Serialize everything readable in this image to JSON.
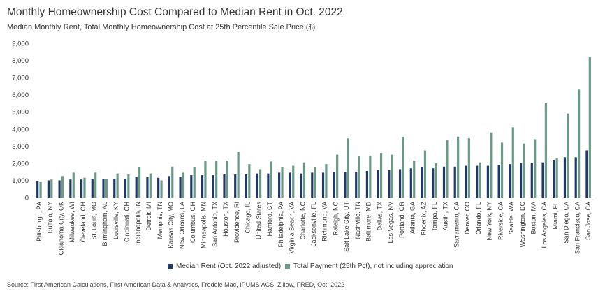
{
  "title": "Monthly Homeownership Cost Compared to Median Rent in Oct. 2022",
  "subtitle": "Median Monthly Rent, Total Monthly Homeownership Cost at 25th Percentile Sale Price ($)",
  "source": "Source: First American Calculations, First American Data & Analytics, Freddie Mac, IPUMS ACS, Zillow, FRED, Oct. 2022",
  "colors": {
    "rent": "#1f3a68",
    "payment": "#6a9a86",
    "text": "#333333"
  },
  "chart_data": {
    "type": "bar",
    "title": "Monthly Homeownership Cost Compared to Median Rent in Oct. 2022",
    "subtitle": "Median Monthly Rent, Total Monthly Homeownership Cost at 25th Percentile Sale Price ($)",
    "xlabel": "",
    "ylabel": "",
    "ylim": [
      0,
      9000
    ],
    "yticks": [
      "0",
      "1,000",
      "2,000",
      "3,000",
      "4,000",
      "5,000",
      "6,000",
      "7,000",
      "8,000",
      "9,000"
    ],
    "grid": false,
    "legend_position": "bottom",
    "categories": [
      "Pittsburgh, PA",
      "Buffalo, NY",
      "Oklahoma City, OK",
      "Milwaukee, WI",
      "Cleveland, OH",
      "St. Louis, MO",
      "Birmingham, AL",
      "Louisville, KY",
      "Cincinnati, OH",
      "Indianapolis, IN",
      "Detroit, MI",
      "Memphis, TN",
      "Kansas City, MO",
      "New Orleans, LA",
      "Columbus, OH",
      "Minneapolis, MN",
      "San Antonio, TX",
      "Houston, TX",
      "Providence, RI",
      "Chicago, IL",
      "United States",
      "Hartford, CT",
      "Philadelphia, PA",
      "Virginia Beach, VA",
      "Charlotte, NC",
      "Jacksonville, FL",
      "Richmond, VA",
      "Raleigh, NC",
      "Salt Lake City, UT",
      "Nashville, TN",
      "Baltimore, MD",
      "Dallas, TX",
      "Las Vegas, NV",
      "Portland, OR",
      "Atlanta, GA",
      "Phoenix, AZ",
      "Tampa, FL",
      "Austin, TX",
      "Sacramento, CA",
      "Denver, CO",
      "Orlando, FL",
      "New York, NY",
      "Riverside, CA",
      "Seattle, WA",
      "Washington, DC",
      "Boston, MA",
      "Los Angeles, CA",
      "Miami, FL",
      "San Diego, CA",
      "San Francisco, CA",
      "San Jose, CA"
    ],
    "series": [
      {
        "name": "Median Rent (Oct. 2022 adjusted)",
        "values": [
          960,
          1000,
          1000,
          1050,
          1050,
          1070,
          1100,
          1080,
          1100,
          1200,
          1200,
          1150,
          1250,
          1200,
          1300,
          1300,
          1300,
          1350,
          1350,
          1350,
          1400,
          1400,
          1450,
          1450,
          1400,
          1450,
          1450,
          1500,
          1500,
          1500,
          1550,
          1600,
          1600,
          1650,
          1700,
          1750,
          1700,
          1800,
          1800,
          1850,
          1850,
          1850,
          1900,
          1950,
          2000,
          2000,
          2050,
          2200,
          2350,
          2350,
          2750
        ]
      },
      {
        "name": "Total Payment (25th Pct), not including appreciation",
        "values": [
          900,
          1050,
          1250,
          1450,
          1150,
          1450,
          1100,
          1400,
          1350,
          1750,
          1400,
          1000,
          1800,
          1450,
          1750,
          2150,
          2150,
          2150,
          2650,
          1950,
          1650,
          2100,
          1750,
          1850,
          2050,
          1750,
          1950,
          2500,
          3450,
          2400,
          2450,
          2600,
          2500,
          3550,
          2150,
          2750,
          2000,
          3350,
          3550,
          3450,
          2050,
          3800,
          3200,
          4100,
          3150,
          3400,
          5500,
          2300,
          4900,
          6300,
          8200
        ]
      }
    ]
  }
}
